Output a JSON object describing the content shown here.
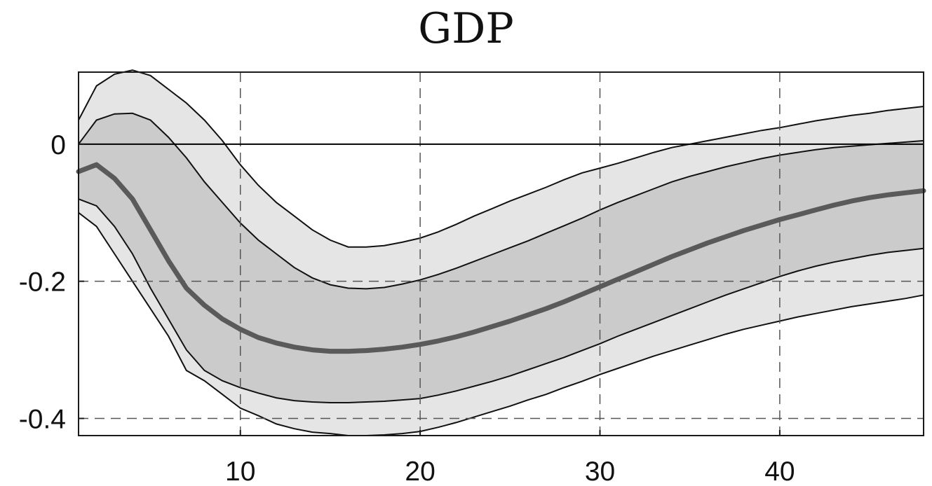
{
  "chart_data": {
    "type": "area",
    "title": "GDP",
    "xlabel": "",
    "ylabel": "",
    "xlim": [
      1,
      48
    ],
    "ylim": [
      -0.425,
      0.105
    ],
    "xticks": [
      10,
      20,
      30,
      40
    ],
    "xtick_labels": [
      "10",
      "20",
      "30",
      "40"
    ],
    "yticks": [
      0,
      -0.2,
      -0.4
    ],
    "ytick_labels": [
      "0",
      "-0.2",
      "-0.4"
    ],
    "grid": true,
    "zero_line": true,
    "x": [
      1,
      2,
      3,
      4,
      5,
      6,
      7,
      8,
      9,
      10,
      11,
      12,
      13,
      14,
      15,
      16,
      17,
      18,
      19,
      20,
      21,
      22,
      23,
      24,
      25,
      26,
      27,
      28,
      29,
      30,
      31,
      32,
      33,
      34,
      35,
      36,
      37,
      38,
      39,
      40,
      41,
      42,
      43,
      44,
      45,
      46,
      47,
      48
    ],
    "bands": [
      {
        "level": "outer",
        "color": "#e5e5e5",
        "upper": [
          0.035,
          0.085,
          0.102,
          0.108,
          0.1,
          0.08,
          0.06,
          0.035,
          0.005,
          -0.03,
          -0.06,
          -0.085,
          -0.105,
          -0.125,
          -0.14,
          -0.15,
          -0.15,
          -0.148,
          -0.143,
          -0.137,
          -0.128,
          -0.117,
          -0.105,
          -0.094,
          -0.083,
          -0.073,
          -0.063,
          -0.052,
          -0.042,
          -0.035,
          -0.028,
          -0.02,
          -0.012,
          -0.005,
          0.0,
          0.005,
          0.01,
          0.015,
          0.02,
          0.024,
          0.029,
          0.034,
          0.038,
          0.042,
          0.045,
          0.049,
          0.052,
          0.055
        ],
        "lower": [
          -0.1,
          -0.12,
          -0.16,
          -0.2,
          -0.24,
          -0.28,
          -0.33,
          -0.345,
          -0.365,
          -0.385,
          -0.396,
          -0.408,
          -0.415,
          -0.42,
          -0.422,
          -0.425,
          -0.425,
          -0.424,
          -0.422,
          -0.419,
          -0.413,
          -0.406,
          -0.398,
          -0.39,
          -0.382,
          -0.373,
          -0.365,
          -0.355,
          -0.346,
          -0.336,
          -0.327,
          -0.318,
          -0.309,
          -0.301,
          -0.293,
          -0.285,
          -0.277,
          -0.27,
          -0.264,
          -0.258,
          -0.252,
          -0.247,
          -0.242,
          -0.237,
          -0.233,
          -0.229,
          -0.225,
          -0.22
        ]
      },
      {
        "level": "inner",
        "color": "#cbcbcb",
        "upper": [
          0.0,
          0.035,
          0.044,
          0.045,
          0.035,
          0.01,
          -0.02,
          -0.055,
          -0.085,
          -0.115,
          -0.14,
          -0.16,
          -0.18,
          -0.195,
          -0.205,
          -0.21,
          -0.211,
          -0.209,
          -0.204,
          -0.198,
          -0.19,
          -0.181,
          -0.171,
          -0.161,
          -0.151,
          -0.141,
          -0.13,
          -0.119,
          -0.108,
          -0.096,
          -0.085,
          -0.075,
          -0.065,
          -0.055,
          -0.047,
          -0.04,
          -0.033,
          -0.027,
          -0.021,
          -0.016,
          -0.012,
          -0.008,
          -0.005,
          -0.003,
          -0.001,
          0.001,
          0.003,
          0.005
        ],
        "lower": [
          -0.08,
          -0.09,
          -0.12,
          -0.16,
          -0.21,
          -0.255,
          -0.3,
          -0.33,
          -0.345,
          -0.355,
          -0.363,
          -0.37,
          -0.374,
          -0.376,
          -0.377,
          -0.377,
          -0.376,
          -0.375,
          -0.373,
          -0.371,
          -0.366,
          -0.36,
          -0.353,
          -0.346,
          -0.338,
          -0.329,
          -0.32,
          -0.311,
          -0.301,
          -0.291,
          -0.28,
          -0.27,
          -0.26,
          -0.25,
          -0.24,
          -0.23,
          -0.22,
          -0.211,
          -0.202,
          -0.193,
          -0.185,
          -0.178,
          -0.172,
          -0.167,
          -0.162,
          -0.158,
          -0.155,
          -0.152
        ]
      }
    ],
    "series": [
      {
        "color": "#5a5a5a",
        "values": [
          -0.04,
          -0.03,
          -0.05,
          -0.08,
          -0.125,
          -0.17,
          -0.21,
          -0.235,
          -0.255,
          -0.27,
          -0.282,
          -0.29,
          -0.296,
          -0.3,
          -0.302,
          -0.302,
          -0.301,
          -0.299,
          -0.296,
          -0.292,
          -0.287,
          -0.281,
          -0.274,
          -0.266,
          -0.258,
          -0.249,
          -0.24,
          -0.23,
          -0.219,
          -0.208,
          -0.197,
          -0.186,
          -0.175,
          -0.164,
          -0.154,
          -0.144,
          -0.135,
          -0.126,
          -0.118,
          -0.11,
          -0.103,
          -0.096,
          -0.089,
          -0.083,
          -0.078,
          -0.074,
          -0.071,
          -0.068
        ]
      }
    ]
  }
}
